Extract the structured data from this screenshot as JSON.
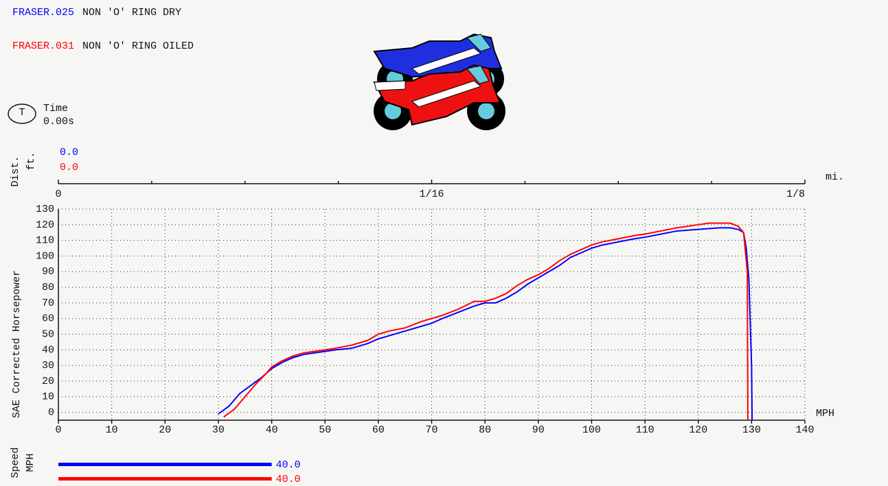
{
  "chart_data": {
    "type": "line",
    "x_label": "MPH",
    "y_label": "SAE Corrected Horsepower",
    "xlim": [
      0,
      140
    ],
    "xticks": [
      0,
      10,
      20,
      30,
      40,
      50,
      60,
      70,
      80,
      90,
      100,
      110,
      120,
      130,
      140
    ],
    "ylim": [
      -5,
      130
    ],
    "yticks": [
      0,
      10,
      20,
      30,
      40,
      50,
      60,
      70,
      80,
      90,
      100,
      110,
      120,
      130
    ],
    "grid": true,
    "series": [
      {
        "name": "FRASER.025",
        "description": "NON 'O' RING DRY",
        "color": "#0000ff",
        "x": [
          30,
          32,
          34,
          36,
          38,
          40,
          42,
          44,
          46,
          48,
          50,
          52,
          55,
          58,
          60,
          62,
          65,
          68,
          70,
          72,
          75,
          78,
          80,
          82,
          84,
          86,
          88,
          90,
          92,
          94,
          96,
          98,
          100,
          102,
          105,
          108,
          110,
          113,
          116,
          120,
          124,
          126,
          127.5,
          128.5,
          129,
          129.5,
          130,
          130.1
        ],
        "values": [
          -1,
          4,
          12,
          17,
          22,
          28,
          32,
          35,
          37,
          38,
          39,
          40,
          41,
          44,
          47,
          49,
          52,
          55,
          57,
          60,
          64,
          68,
          70,
          70,
          73,
          77,
          82,
          86,
          90,
          94,
          99,
          102,
          105,
          107,
          109,
          111,
          112,
          114,
          116,
          117,
          118,
          118,
          117,
          115,
          105,
          85,
          30,
          -5
        ]
      },
      {
        "name": "FRASER.031",
        "description": "NON 'O' RING OILED",
        "color": "#ff0000",
        "x": [
          31,
          33,
          35,
          37,
          39,
          40,
          42,
          44,
          46,
          48,
          50,
          52,
          55,
          58,
          60,
          62,
          65,
          68,
          70,
          72,
          75,
          78,
          80,
          82,
          84,
          86,
          88,
          90,
          92,
          94,
          96,
          98,
          100,
          102,
          105,
          108,
          110,
          113,
          116,
          120,
          122,
          126,
          127.5,
          128.5,
          129.2,
          129.3
        ],
        "values": [
          -3,
          2,
          10,
          18,
          25,
          29,
          33,
          36,
          38,
          39,
          40,
          41,
          43,
          46,
          50,
          52,
          54,
          58,
          60,
          62,
          66,
          71,
          71,
          73,
          76,
          81,
          85,
          88,
          92,
          97,
          101,
          104,
          107,
          109,
          111,
          113,
          114,
          116,
          118,
          120,
          121,
          121,
          119,
          115,
          90,
          -5
        ]
      }
    ]
  },
  "time": {
    "label": "Time",
    "icon": "T",
    "value": "0.00s"
  },
  "distance": {
    "label": "Dist.",
    "unit": "ft.",
    "readouts": [
      "0.0",
      "0.0"
    ],
    "scale_unit": "mi.",
    "xlim": [
      0,
      0.125
    ],
    "ticks": [
      {
        "value": 0,
        "label": "0"
      },
      {
        "value": 0.0625,
        "label": "1/16"
      },
      {
        "value": 0.125,
        "label": "1/8"
      }
    ],
    "minor_ticks": [
      0.015625,
      0.03125,
      0.046875,
      0.078125,
      0.09375,
      0.109375
    ]
  },
  "speed": {
    "label": "Speed",
    "unit": "MPH",
    "values": [
      40,
      40
    ],
    "value_labels": [
      "40.0",
      "40.0"
    ]
  }
}
